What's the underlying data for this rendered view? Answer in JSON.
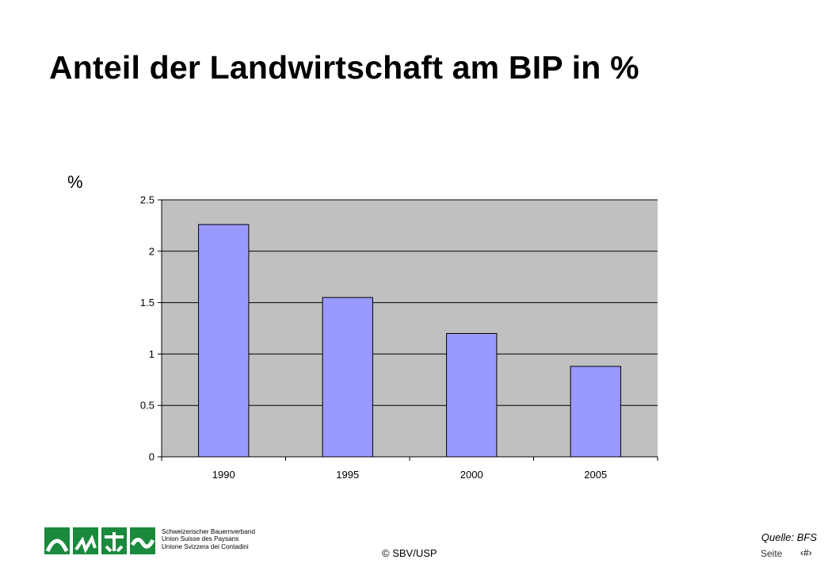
{
  "slide": {
    "title": "Anteil der Landwirtschaft am BIP in %"
  },
  "chart_data": {
    "type": "bar",
    "unit_label": "%",
    "categories": [
      "1990",
      "1995",
      "2000",
      "2005"
    ],
    "values": [
      2.26,
      1.55,
      1.2,
      0.88
    ],
    "ylim": [
      0,
      2.5
    ],
    "yticks": [
      0,
      0.5,
      1,
      1.5,
      2,
      2.5
    ],
    "ytick_labels": [
      "0",
      "0.5",
      "1",
      "1.5",
      "2",
      "2.5"
    ],
    "grid": true,
    "legend": "none",
    "colors": {
      "bar_fill": "#9999ff",
      "plot_background": "#c0c0c0",
      "gridline": "#000000"
    }
  },
  "footer": {
    "org_names": [
      "Schweizerischer Bauernverband",
      "Union Suisse des Paysans",
      "Unione Svizzera dei Contadini"
    ],
    "copyright": "© SBV/USP",
    "source": "Quelle: BFS",
    "page_label": "Seite",
    "page_number": "‹#›",
    "logo_color": "#1a8a3c",
    "logo_icon": "sbv-logo-icon"
  }
}
